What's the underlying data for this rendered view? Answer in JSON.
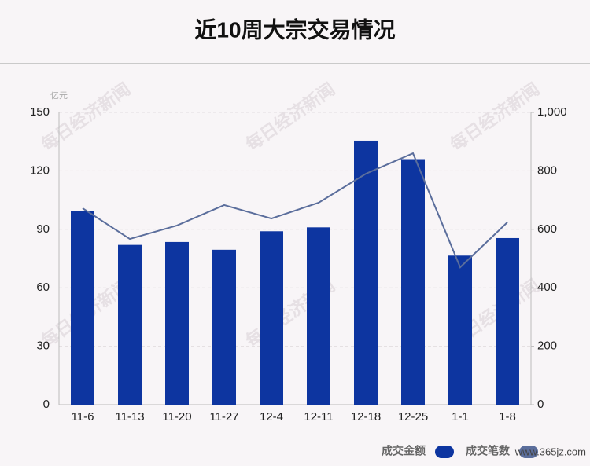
{
  "chart_data": {
    "type": "bar-line",
    "title": "近10周大宗交易情况",
    "y_unit": "亿元",
    "watermark": "每日经济新闻",
    "site_watermark": "www.365jz.com",
    "categories": [
      "11-6",
      "11-13",
      "11-20",
      "11-27",
      "12-4",
      "12-11",
      "12-18",
      "12-25",
      "1-1",
      "1-8"
    ],
    "series": [
      {
        "name": "成交金额",
        "type": "bar",
        "color": "#0d35a0",
        "values": [
          99.5,
          82,
          83.5,
          79.5,
          89,
          91,
          135.5,
          126,
          76.5,
          85.5
        ]
      },
      {
        "name": "成交笔数",
        "type": "line",
        "axis": "y2",
        "color": "#5b6e9c",
        "values": [
          672,
          567,
          613,
          683,
          637,
          691,
          790,
          860,
          470,
          624
        ]
      }
    ],
    "ylim": [
      0,
      150
    ],
    "yticks": [
      0,
      30,
      60,
      90,
      120,
      150
    ],
    "y2lim": [
      0,
      1000
    ],
    "y2ticks": [
      0,
      200,
      400,
      600,
      800,
      {
        "value": 1000,
        "label": "1,000"
      }
    ],
    "grid": true
  }
}
